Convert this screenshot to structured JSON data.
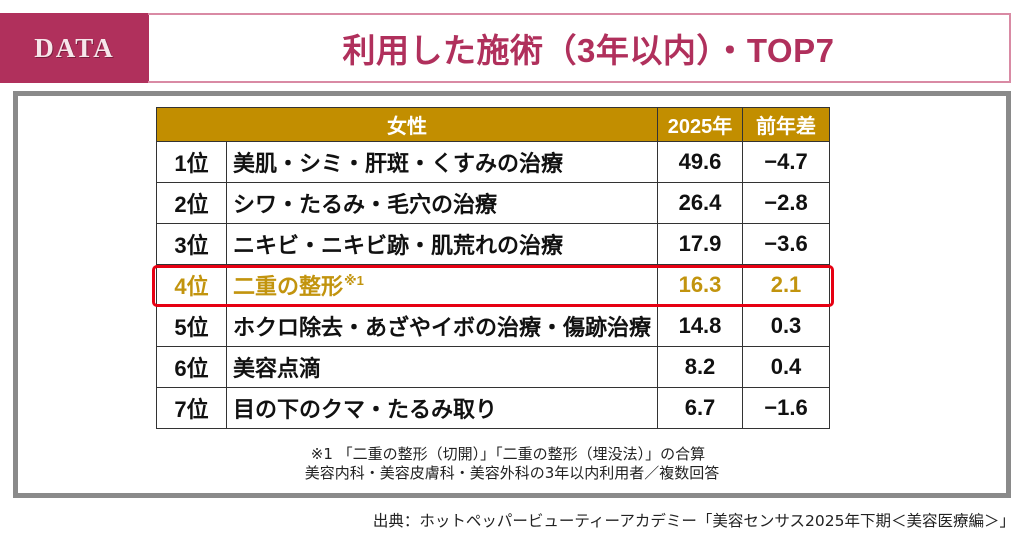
{
  "header": {
    "badge": "DATA",
    "title": "利用した施術（3年以内）・TOP7"
  },
  "colors": {
    "brand_pink": "#b0305c",
    "title_border": "#d98aa4",
    "table_header_gold": "#c28e00",
    "highlight_text": "#c2940e",
    "highlight_border": "#e60012",
    "frame_gray": "#8a8a8a"
  },
  "table": {
    "headers": {
      "group": "女性",
      "year": "2025年",
      "diff": "前年差"
    },
    "rows": [
      {
        "rank": "1位",
        "name": "美肌・シミ・肝斑・くすみの治療",
        "note": "",
        "value": "49.6",
        "diff": "−4.7"
      },
      {
        "rank": "2位",
        "name": "シワ・たるみ・毛穴の治療",
        "note": "",
        "value": "26.4",
        "diff": "−2.8"
      },
      {
        "rank": "3位",
        "name": "ニキビ・ニキビ跡・肌荒れの治療",
        "note": "",
        "value": "17.9",
        "diff": "−3.6"
      },
      {
        "rank": "4位",
        "name": "二重の整形",
        "note": "※1",
        "value": "16.3",
        "diff": "2.1"
      },
      {
        "rank": "5位",
        "name": "ホクロ除去・あざやイボの治療・傷跡治療",
        "note": "",
        "value": "14.8",
        "diff": "0.3"
      },
      {
        "rank": "6位",
        "name": "美容点滴",
        "note": "",
        "value": "8.2",
        "diff": "0.4"
      },
      {
        "rank": "7位",
        "name": "目の下のクマ・たるみ取り",
        "note": "",
        "value": "6.7",
        "diff": "−1.6"
      }
    ],
    "highlighted_row": 3
  },
  "footnotes": {
    "line1": "※1 「二重の整形（切開）」「二重の整形（埋没法）」の合算",
    "line2": "美容内科・美容皮膚科・美容外科の3年以内利用者／複数回答"
  },
  "source": "出典：ホットペッパービューティーアカデミー「美容センサス2025年下期＜美容医療編＞」"
}
